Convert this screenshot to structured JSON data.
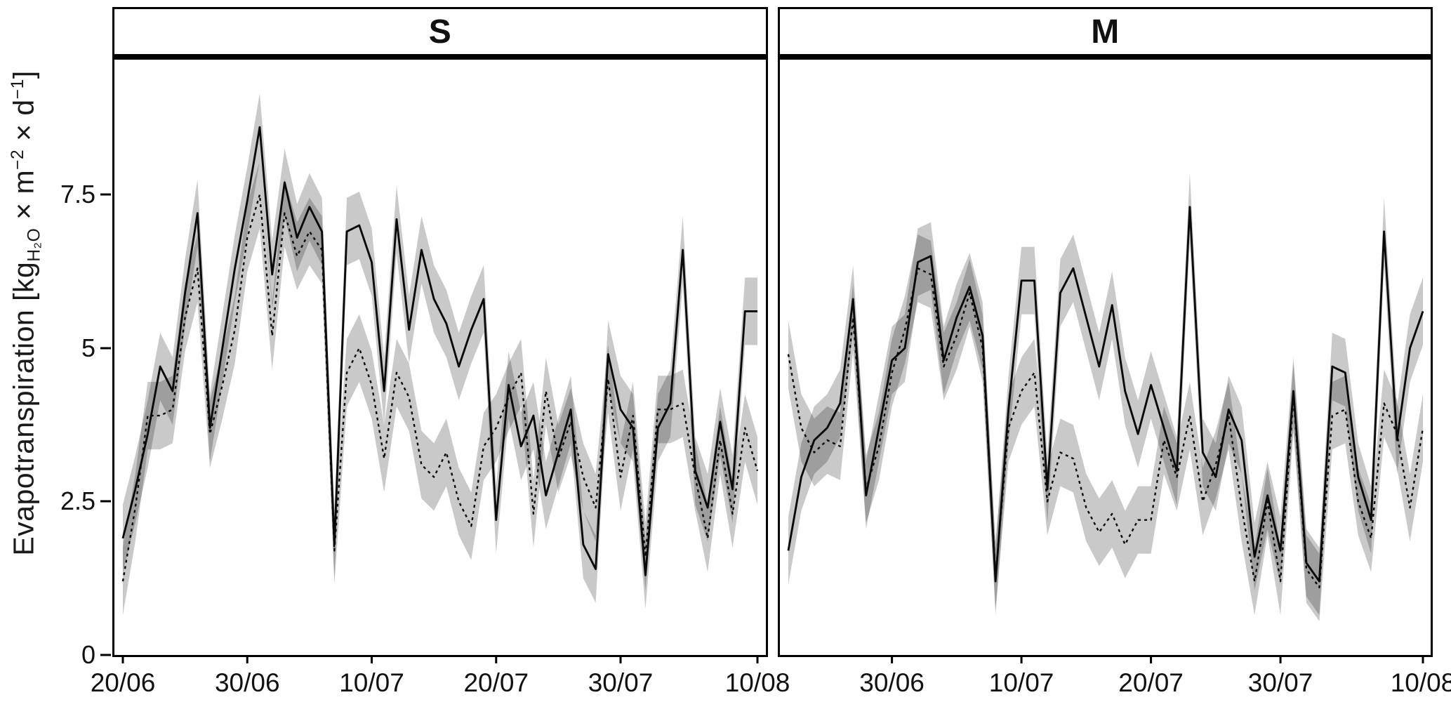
{
  "chart_data": {
    "type": "line",
    "title": "",
    "ylabel_parts": {
      "pre": "Evapotranspiration [kg",
      "sub": "H₂O",
      "mid1": " × m",
      "sup1": "−2",
      "mid2": " × d",
      "sup2": "−1",
      "post": "]"
    },
    "ylim": [
      0,
      9.7
    ],
    "ytick_values": [
      0,
      2.5,
      5,
      7.5
    ],
    "ytick_labels": [
      "0",
      "2.5",
      "5",
      "7.5"
    ],
    "grid": false,
    "legend": "none",
    "ribbon_halfwidth": 0.55,
    "ribbon_color": "#000000",
    "ribbon_opacity": 0.21,
    "line_color": "#0a0a0a",
    "dates": [
      "20/06",
      "21/06",
      "22/06",
      "23/06",
      "24/06",
      "25/06",
      "26/06",
      "27/06",
      "28/06",
      "29/06",
      "30/06",
      "01/07",
      "02/07",
      "03/07",
      "04/07",
      "05/07",
      "06/07",
      "07/07",
      "08/07",
      "09/07",
      "10/07",
      "11/07",
      "12/07",
      "13/07",
      "14/07",
      "15/07",
      "16/07",
      "17/07",
      "18/07",
      "19/07",
      "20/07",
      "21/07",
      "22/07",
      "23/07",
      "24/07",
      "25/07",
      "26/07",
      "27/07",
      "28/07",
      "29/07",
      "30/07",
      "31/07",
      "01/08",
      "02/08",
      "03/08",
      "04/08",
      "05/08",
      "06/08",
      "07/08",
      "08/08",
      "09/08",
      "10/08"
    ],
    "panels": [
      {
        "title": "S",
        "x_start_index": 0,
        "xticks": [
          "20/06",
          "30/06",
          "10/07",
          "20/07",
          "30/07",
          "10/08"
        ],
        "series": [
          {
            "name": "solid",
            "style": "solid",
            "values": [
              1.9,
              2.7,
              3.6,
              4.7,
              4.3,
              5.9,
              7.2,
              3.7,
              5.0,
              6.3,
              7.4,
              8.6,
              6.2,
              7.7,
              6.8,
              7.3,
              6.9,
              1.8,
              6.9,
              7.0,
              6.4,
              4.3,
              7.1,
              5.3,
              6.6,
              5.8,
              5.4,
              4.7,
              5.3,
              5.8,
              2.2,
              4.4,
              3.4,
              3.9,
              2.6,
              3.3,
              4.0,
              1.8,
              1.4,
              4.9,
              4.0,
              3.7,
              1.3,
              3.7,
              4.1,
              6.6,
              3.0,
              2.4,
              3.8,
              2.7,
              5.6,
              5.6
            ]
          },
          {
            "name": "dashed",
            "style": "dashed",
            "values": [
              1.2,
              2.4,
              3.9,
              3.9,
              4.0,
              5.5,
              6.3,
              3.6,
              4.4,
              5.3,
              6.8,
              7.5,
              5.2,
              7.2,
              6.5,
              6.9,
              6.6,
              1.7,
              4.6,
              5.0,
              4.4,
              3.2,
              4.6,
              4.2,
              3.1,
              2.9,
              3.3,
              2.5,
              2.1,
              3.4,
              3.7,
              4.2,
              4.6,
              2.3,
              4.3,
              3.2,
              3.8,
              2.9,
              2.4,
              4.5,
              2.9,
              3.9,
              1.6,
              4.0,
              4.0,
              4.1,
              2.9,
              1.9,
              3.5,
              2.3,
              3.7,
              3.0
            ]
          }
        ]
      },
      {
        "title": "M",
        "x_start_index": 2,
        "xticks": [
          "30/06",
          "10/07",
          "20/07",
          "30/07",
          "10/08"
        ],
        "series": [
          {
            "name": "solid",
            "style": "solid",
            "values": [
              null,
              null,
              1.7,
              2.9,
              3.5,
              3.7,
              4.1,
              5.8,
              2.6,
              3.7,
              4.8,
              5.0,
              6.4,
              6.5,
              4.8,
              5.5,
              6.0,
              5.2,
              1.2,
              4.0,
              6.1,
              6.1,
              2.7,
              5.9,
              6.3,
              5.5,
              4.7,
              5.7,
              4.3,
              3.6,
              4.4,
              3.7,
              3.0,
              7.3,
              3.3,
              2.9,
              4.0,
              3.5,
              1.6,
              2.6,
              1.7,
              4.3,
              1.5,
              1.2,
              4.7,
              4.6,
              2.9,
              2.2,
              6.9,
              3.5,
              5.0,
              5.6
            ]
          },
          {
            "name": "dashed",
            "style": "dashed",
            "values": [
              null,
              null,
              4.9,
              3.7,
              3.3,
              3.5,
              3.4,
              5.5,
              2.7,
              3.4,
              4.6,
              5.3,
              6.3,
              6.2,
              4.7,
              5.2,
              5.9,
              5.0,
              1.3,
              3.7,
              4.3,
              4.6,
              2.5,
              3.3,
              3.2,
              2.4,
              2.0,
              2.3,
              1.8,
              2.2,
              2.2,
              3.5,
              2.9,
              3.9,
              2.5,
              3.1,
              3.9,
              2.4,
              1.2,
              2.5,
              1.2,
              4.2,
              1.4,
              1.1,
              3.9,
              4.0,
              2.5,
              1.9,
              4.1,
              3.6,
              2.4,
              3.7
            ]
          }
        ]
      }
    ]
  }
}
